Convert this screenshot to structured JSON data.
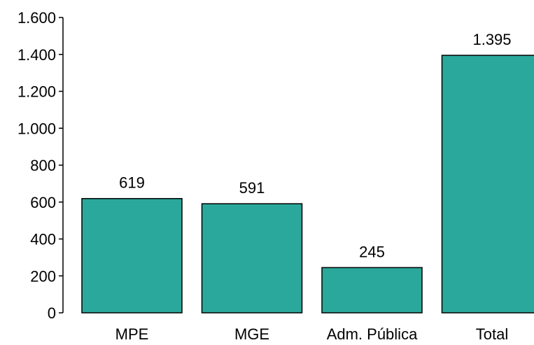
{
  "chart_data": {
    "type": "bar",
    "categories": [
      "MPE",
      "MGE",
      "Adm. Pública",
      "Total"
    ],
    "values": [
      619,
      591,
      245,
      1395
    ],
    "data_labels": [
      "619",
      "591",
      "245",
      "1.395"
    ],
    "yticks": [
      0,
      200,
      400,
      600,
      800,
      1000,
      1200,
      1400,
      1600
    ],
    "ytick_labels": [
      "0",
      "200",
      "400",
      "600",
      "800",
      "1.000",
      "1.200",
      "1.400",
      "1.600"
    ],
    "ylim": [
      0,
      1600
    ],
    "bar_color": "#2aa89b",
    "title": "",
    "xlabel": "",
    "ylabel": "",
    "grid": false,
    "legend": "none"
  }
}
